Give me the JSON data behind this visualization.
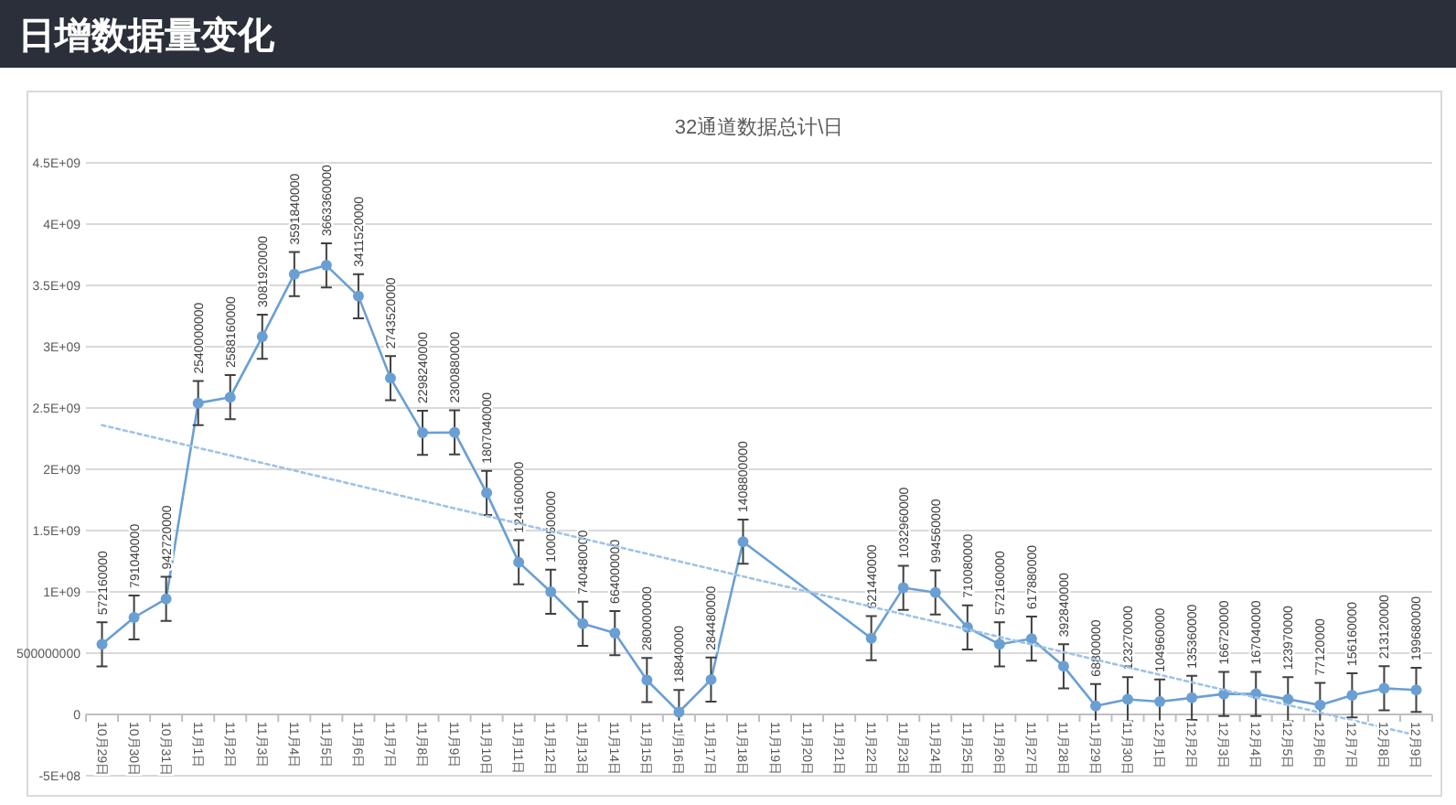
{
  "chart_data": {
    "type": "line",
    "title": "日增数据量变化",
    "subtitle": "32通道数据总计\\日",
    "categories": [
      "10月29日",
      "10月30日",
      "10月31日",
      "11月1日",
      "11月2日",
      "11月3日",
      "11月4日",
      "11月5日",
      "11月6日",
      "11月7日",
      "11月8日",
      "11月9日",
      "11月10日",
      "11月11日",
      "11月12日",
      "11月13日",
      "11月14日",
      "11月15日",
      "11月16日",
      "11月17日",
      "11月18日",
      "11月19日",
      "11月20日",
      "11月21日",
      "11月22日",
      "11月23日",
      "11月24日",
      "11月25日",
      "11月26日",
      "11月27日",
      "11月28日",
      "11月29日",
      "11月30日",
      "12月1日",
      "12月2日",
      "12月3日",
      "12月4日",
      "12月5日",
      "12月6日",
      "12月7日",
      "12月8日",
      "12月9日"
    ],
    "ylim": [
      -500000000,
      4500000000
    ],
    "yticks": [
      {
        "value": -500000000,
        "label": "-5E+08"
      },
      0,
      500000000,
      {
        "value": 1000000000,
        "label": "1E+09"
      },
      {
        "value": 1500000000,
        "label": "1.5E+09"
      },
      {
        "value": 2000000000,
        "label": "2E+09"
      },
      {
        "value": 2500000000,
        "label": "2.5E+09"
      },
      {
        "value": 3000000000,
        "label": "3E+09"
      },
      {
        "value": 3500000000,
        "label": "3.5E+09"
      },
      {
        "value": 4000000000,
        "label": "4E+09"
      },
      {
        "value": 4500000000,
        "label": "4.5E+09"
      }
    ],
    "grid": "y",
    "marker": "circle",
    "line_style": "solid",
    "series": [
      {
        "color": "#6a9fd4",
        "values": [
          572160000,
          791040000,
          942720000,
          2540000000,
          2588160000,
          3081920000,
          3591840000,
          3663360000,
          3411520000,
          2743520000,
          2298240000,
          2300880000,
          1807040000,
          1241600000,
          1000500000,
          740480000,
          664000000,
          280000000,
          18840000,
          284480000,
          1408800000,
          null,
          null,
          null,
          621440000,
          1032960000,
          994560000,
          710080000,
          572160000,
          617880000,
          392840000,
          68800000,
          123270000,
          104960000,
          135360000,
          166720000,
          167040000,
          123970000,
          77120000,
          156160000,
          213120000,
          199680000
        ],
        "value_labels": [
          "572160000",
          "791040000",
          "942720000",
          "2540000000",
          "2588160000",
          "3081920000",
          "3591840000",
          "3663360000",
          "3411520000",
          "2743520000",
          "2298240000",
          "2300880000",
          "1807040000",
          "1241600000",
          "1000500000",
          "740480000",
          "664000000",
          "280000000",
          "18840000",
          "284480000",
          "1408800000",
          null,
          null,
          null,
          "621440000",
          "1032960000",
          "994560000",
          "710080000",
          "572160000",
          "617880000",
          "392840000",
          "68800000",
          "123270000",
          "104960000",
          "135360000",
          "166720000",
          "167040000",
          "123970000",
          "77120000",
          "156160000",
          "213120000",
          "199680000"
        ],
        "errors": [
          180000000,
          180000000,
          180000000,
          180000000,
          180000000,
          180000000,
          180000000,
          180000000,
          180000000,
          180000000,
          180000000,
          180000000,
          180000000,
          180000000,
          180000000,
          180000000,
          180000000,
          180000000,
          180000000,
          180000000,
          180000000,
          null,
          null,
          null,
          180000000,
          180000000,
          180000000,
          180000000,
          180000000,
          180000000,
          180000000,
          180000000,
          180000000,
          180000000,
          180000000,
          180000000,
          180000000,
          180000000,
          180000000,
          180000000,
          180000000,
          180000000
        ]
      },
      {
        "type": "line",
        "color": "#9dc3e6",
        "line_style": "dotted",
        "marker": "none",
        "x": [
          "10月29日",
          "12月9日"
        ],
        "values": [
          2360000000,
          -170000000
        ]
      }
    ]
  }
}
